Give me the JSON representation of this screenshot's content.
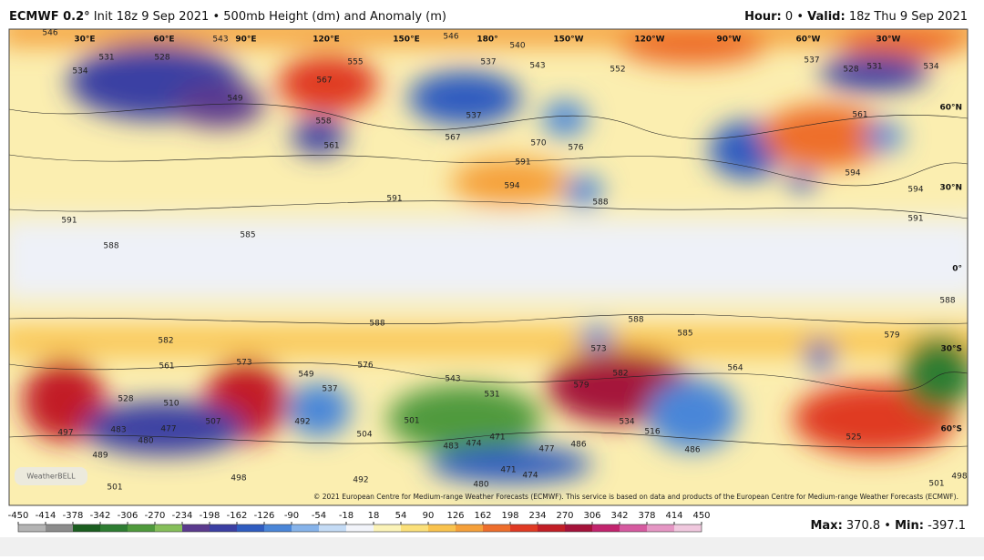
{
  "header": {
    "model": "ECMWF 0.2°",
    "run": "Init 18z 9 Sep 2021",
    "separator": "•",
    "product": "500mb Height (dm) and Anomaly (m)",
    "hour_label": "Hour:",
    "hour": "0",
    "valid_label": "Valid:",
    "valid": "18z Thu 9 Sep 2021"
  },
  "map": {
    "longitudes": [
      "30°E",
      "60°E",
      "90°E",
      "120°E",
      "150°E",
      "180°",
      "150°W",
      "120°W",
      "90°W",
      "60°W",
      "30°W"
    ],
    "latitudes": [
      "60°N",
      "30°N",
      "0°",
      "30°S",
      "60°S"
    ],
    "contour_labels": [
      546,
      543,
      546,
      540,
      537,
      543,
      531,
      528,
      534,
      555,
      567,
      537,
      558,
      561,
      552,
      537,
      528,
      531,
      534,
      567,
      570,
      576,
      549,
      561,
      591,
      594,
      594,
      591,
      594,
      591,
      588,
      591,
      585,
      588,
      588,
      582,
      588,
      585,
      579,
      573,
      576,
      573,
      561,
      582,
      579,
      549,
      537,
      564,
      543,
      531,
      528,
      510,
      507,
      492,
      501,
      504,
      483,
      477,
      480,
      497,
      489,
      471,
      474,
      483,
      477,
      486,
      486,
      534,
      516,
      525,
      480,
      471,
      474,
      501,
      498,
      492,
      501,
      498,
      588
    ],
    "logo": "WeatherBELL",
    "copyright": "© 2021 European Centre for Medium-range Weather Forecasts (ECMWF). This service is based on data and products of the European Centre for Medium-range Weather Forecasts (ECMWF)."
  },
  "colorbar": {
    "ticks": [
      -450,
      -414,
      -378,
      -342,
      -306,
      -270,
      -234,
      -198,
      -162,
      -126,
      -90,
      -54,
      -18,
      18,
      54,
      90,
      126,
      162,
      198,
      234,
      270,
      306,
      342,
      378,
      414,
      450
    ],
    "colors": [
      "#b4b4b4",
      "#8c8c8c",
      "#1b5e20",
      "#2e7d32",
      "#4f9a3c",
      "#86bf5a",
      "#5b3a8e",
      "#3b3fa3",
      "#2f5cc0",
      "#4a86d8",
      "#86b3ea",
      "#c4dbf5",
      "#f2f4fa",
      "#fbf3b8",
      "#fbe07a",
      "#f9c34e",
      "#f5a03a",
      "#ee6e2c",
      "#e03a24",
      "#c21e26",
      "#a5123a",
      "#c2246e",
      "#d65aa0",
      "#e596c4",
      "#f0c8de"
    ]
  },
  "stats": {
    "max_label": "Max:",
    "max": 370.8,
    "separator": "•",
    "min_label": "Min:",
    "min": -397.1
  }
}
